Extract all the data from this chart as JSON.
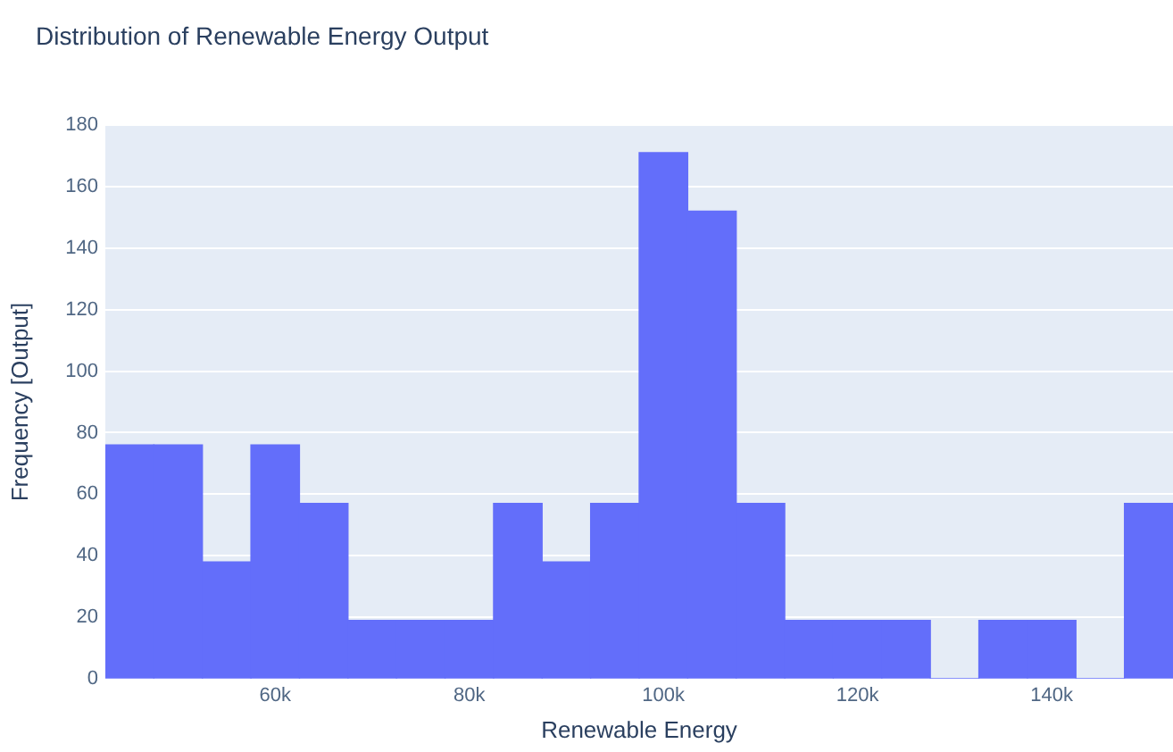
{
  "chart_data": {
    "type": "histogram",
    "title": "Distribution of Renewable Energy Output",
    "xlabel": "Renewable Energy",
    "ylabel": "Frequency [Output]",
    "bins": [
      42500,
      47500,
      52500,
      57500,
      62500,
      67500,
      72500,
      77500,
      82500,
      87500,
      92500,
      97500,
      102500,
      107500,
      112500,
      117500,
      122500,
      127500,
      132500,
      137500,
      142500,
      147500,
      152500
    ],
    "values": [
      76,
      76,
      38,
      76,
      57,
      19,
      19,
      19,
      57,
      38,
      57,
      171,
      152,
      57,
      19,
      19,
      19,
      0,
      19,
      19,
      0,
      57
    ],
    "color": "#636efa",
    "xlim": [
      42500,
      152500
    ],
    "xticks": [
      {
        "value": 60000,
        "label": "60k"
      },
      {
        "value": 80000,
        "label": "80k"
      },
      {
        "value": 100000,
        "label": "100k"
      },
      {
        "value": 120000,
        "label": "120k"
      },
      {
        "value": 140000,
        "label": "140k"
      }
    ],
    "ylim": [
      0,
      180
    ],
    "yticks": [
      0,
      20,
      40,
      60,
      80,
      100,
      120,
      140,
      160,
      180
    ],
    "grid": "y",
    "legend": false
  }
}
